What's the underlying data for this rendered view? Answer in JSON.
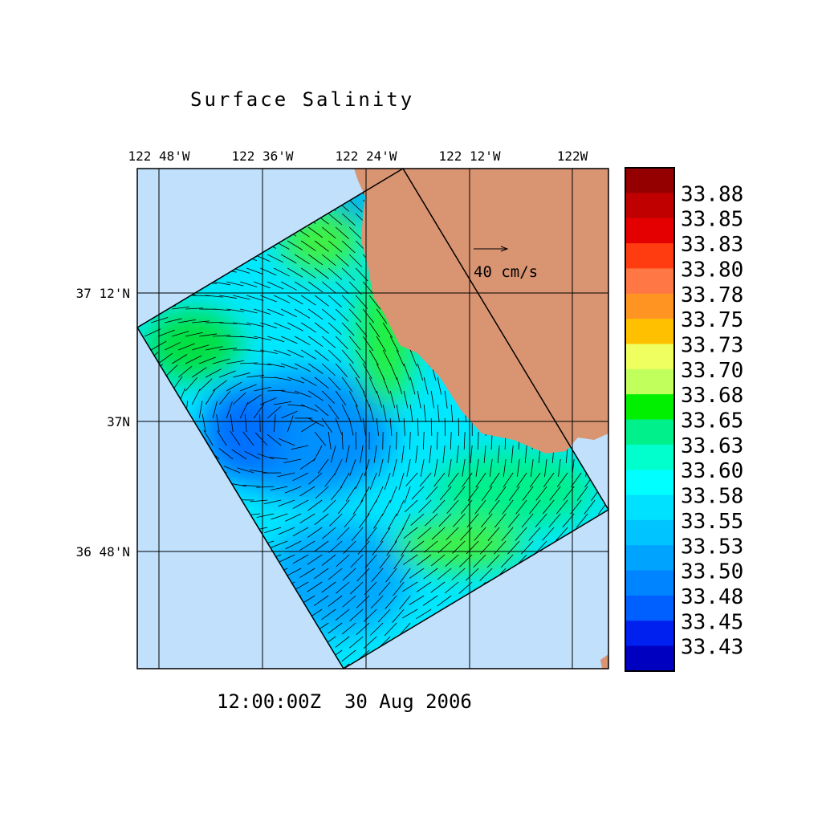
{
  "chart_data": {
    "type": "heatmap",
    "title": "Surface Salinity",
    "time_label": "12:00:00Z  30 Aug 2006",
    "x_ticks": [
      "122 48'W",
      "122 36'W",
      "122 24'W",
      "122 12'W",
      "122W"
    ],
    "y_ticks": [
      "37 12'N",
      "37N",
      "36 48'N"
    ],
    "vector_reference": "40 cm/s",
    "colorbar": {
      "labels": [
        "33.88",
        "33.85",
        "33.83",
        "33.80",
        "33.78",
        "33.75",
        "33.73",
        "33.70",
        "33.68",
        "33.65",
        "33.63",
        "33.60",
        "33.58",
        "33.55",
        "33.53",
        "33.50",
        "33.48",
        "33.45",
        "33.43"
      ],
      "colors": [
        "#940000",
        "#c00000",
        "#e40000",
        "#ff3c10",
        "#ff7744",
        "#ff9422",
        "#ffc000",
        "#f0ff60",
        "#c0ff5c",
        "#00f000",
        "#00f08c",
        "#00ffcc",
        "#00ffff",
        "#00e0ff",
        "#00c4ff",
        "#00a4ff",
        "#0084ff",
        "#0060ff",
        "#0020f0",
        "#0000c0"
      ]
    },
    "colors": {
      "ocean_outside": "#c0e0fc",
      "land": "#d99472"
    }
  }
}
